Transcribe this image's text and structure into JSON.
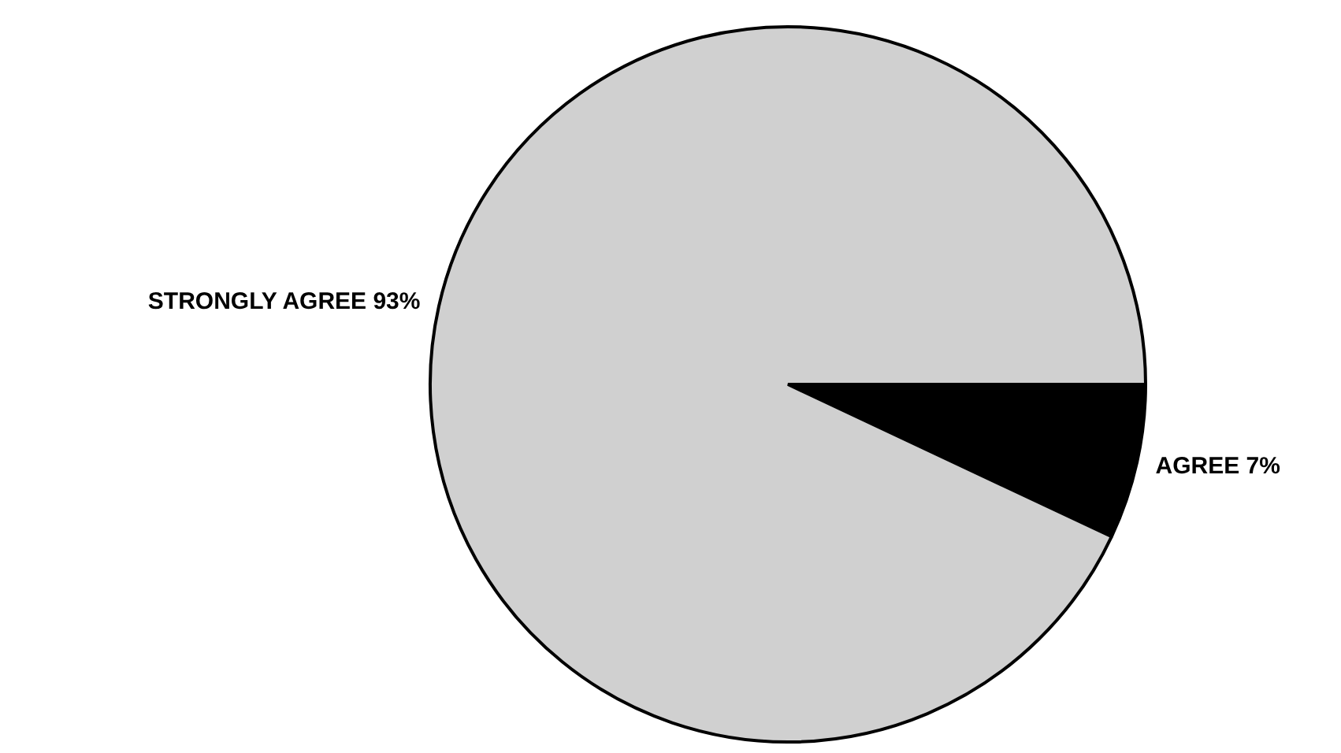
{
  "chart_data": {
    "type": "pie",
    "categories": [
      "AGREE",
      "STRONGLY AGREE"
    ],
    "values": [
      7,
      93
    ],
    "colors": [
      "#000000",
      "#d0d0d0"
    ],
    "value_labels": [
      "7%",
      "93%"
    ],
    "legend": false
  }
}
